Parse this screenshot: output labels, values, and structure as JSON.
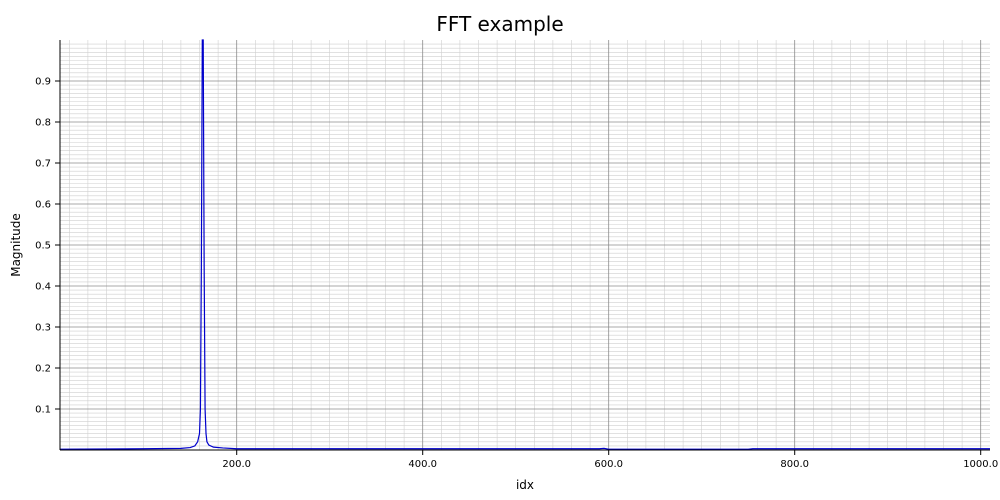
{
  "chart_data": {
    "type": "line",
    "title": "FFT example",
    "xlabel": "idx",
    "ylabel": "Magnitude",
    "xlim": [
      10,
      1010
    ],
    "ylim": [
      0,
      1.0
    ],
    "x_major_ticks": [
      200,
      400,
      600,
      800,
      1000
    ],
    "x_tick_labels": [
      "200.0",
      "400.0",
      "600.0",
      "800.0",
      "1000.0"
    ],
    "y_major_ticks": [
      0.1,
      0.2,
      0.3,
      0.4,
      0.5,
      0.6,
      0.7,
      0.8,
      0.9
    ],
    "y_tick_labels": [
      "0.1",
      "0.2",
      "0.3",
      "0.4",
      "0.5",
      "0.6",
      "0.7",
      "0.8",
      "0.9"
    ],
    "grid": true,
    "series_color": "#0000cc",
    "series": [
      {
        "x": [
          10,
          100,
          140,
          150,
          155,
          158,
          160,
          161,
          162,
          163,
          164,
          165,
          166,
          167,
          168,
          170,
          175,
          185,
          200,
          300,
          400,
          500,
          590,
          595,
          600,
          605,
          700,
          750,
          755,
          800,
          900,
          1010
        ],
        "y": [
          0.002,
          0.003,
          0.004,
          0.006,
          0.01,
          0.02,
          0.04,
          0.1,
          0.45,
          1.0,
          1.0,
          0.45,
          0.1,
          0.04,
          0.02,
          0.012,
          0.007,
          0.005,
          0.003,
          0.003,
          0.003,
          0.003,
          0.003,
          0.004,
          0.002,
          0.002,
          0.002,
          0.002,
          0.003,
          0.003,
          0.003,
          0.003
        ]
      }
    ]
  }
}
